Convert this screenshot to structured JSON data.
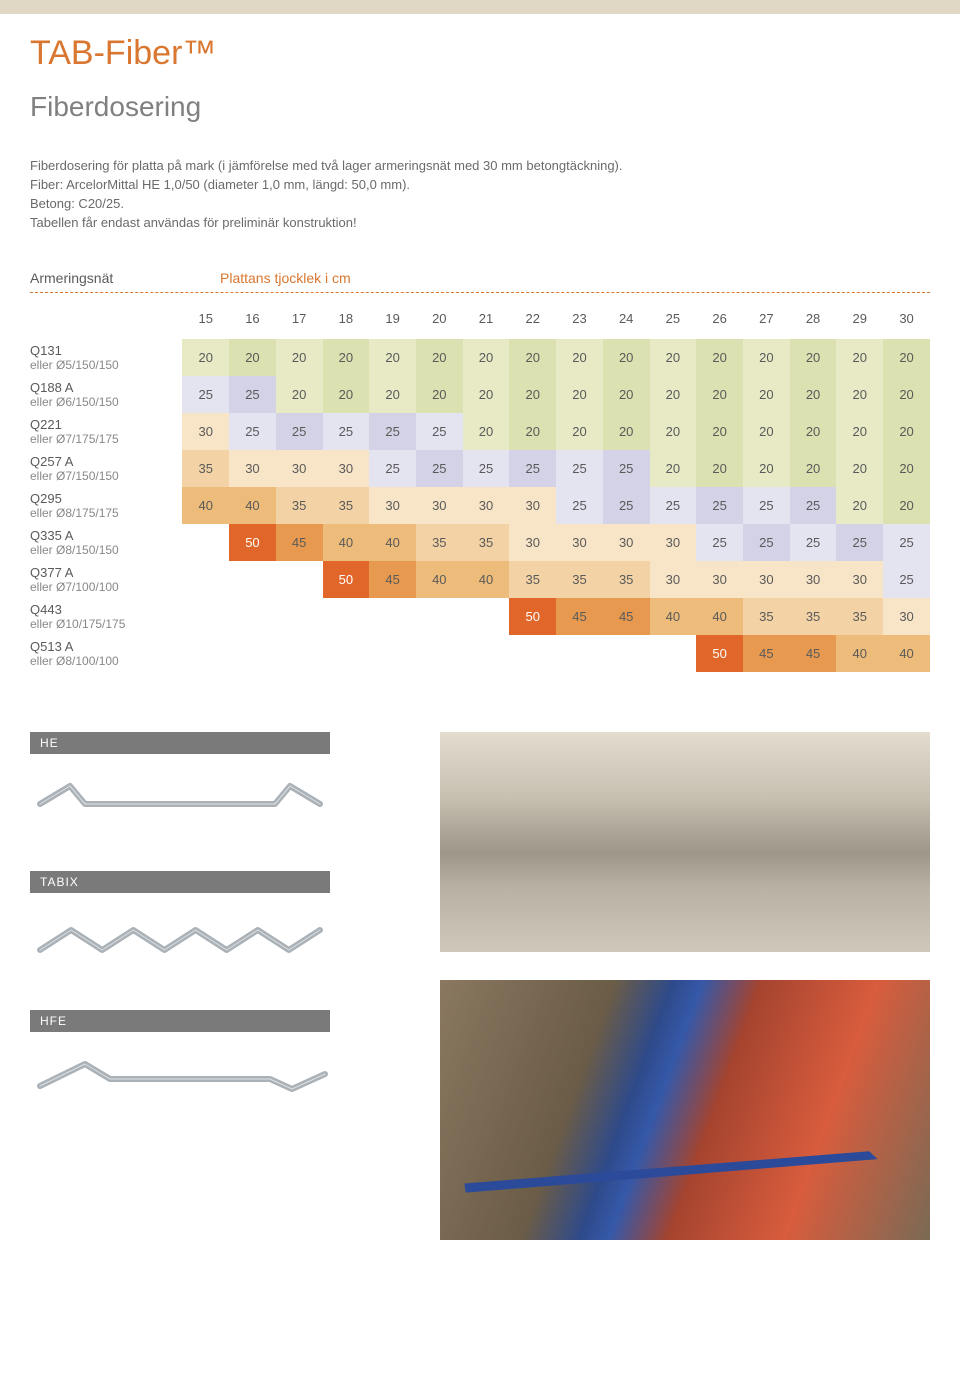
{
  "title": "TAB-Fiber™",
  "section": "Fiberdosering",
  "intro": [
    "Fiberdosering för platta på mark (i jämförelse med två lager armeringsnät med 30 mm betongtäckning).",
    "Fiber: ArcelorMittal HE 1,0/50 (diameter 1,0 mm, längd: 50,0 mm).",
    "Betong: C20/25.",
    "Tabellen får endast användas för preliminär konstruktion!"
  ],
  "table": {
    "row_label_header": "Armeringsnät",
    "col_label_header": "Plattans tjocklek i cm",
    "columns": [
      "15",
      "16",
      "17",
      "18",
      "19",
      "20",
      "21",
      "22",
      "23",
      "24",
      "25",
      "26",
      "27",
      "28",
      "29",
      "30"
    ],
    "col_header_color": "#5a5a5a",
    "cell_text_color": "#5a5a5a",
    "cell_highlight_text_color": "#ffffff",
    "palette": {
      "g1": "#e8eac6",
      "g2": "#dbe1b0",
      "b1": "#e4e3f0",
      "b2": "#d3d2e6",
      "o1": "#f8e4c6",
      "o2": "#f3d3a5",
      "o3": "#eebc7a",
      "o4": "#e79a4f",
      "o5": "#e0662a",
      "blank": ""
    },
    "rows": [
      {
        "main": "Q131",
        "sub": "eller Ø5/150/150",
        "values": [
          "20",
          "20",
          "20",
          "20",
          "20",
          "20",
          "20",
          "20",
          "20",
          "20",
          "20",
          "20",
          "20",
          "20",
          "20",
          "20"
        ],
        "colors": [
          "g1",
          "g2",
          "g1",
          "g2",
          "g1",
          "g2",
          "g1",
          "g2",
          "g1",
          "g2",
          "g1",
          "g2",
          "g1",
          "g2",
          "g1",
          "g2"
        ]
      },
      {
        "main": "Q188 A",
        "sub": "eller Ø6/150/150",
        "values": [
          "25",
          "25",
          "20",
          "20",
          "20",
          "20",
          "20",
          "20",
          "20",
          "20",
          "20",
          "20",
          "20",
          "20",
          "20",
          "20"
        ],
        "colors": [
          "b1",
          "b2",
          "g1",
          "g2",
          "g1",
          "g2",
          "g1",
          "g2",
          "g1",
          "g2",
          "g1",
          "g2",
          "g1",
          "g2",
          "g1",
          "g2"
        ]
      },
      {
        "main": "Q221",
        "sub": "eller Ø7/175/175",
        "values": [
          "30",
          "25",
          "25",
          "25",
          "25",
          "25",
          "20",
          "20",
          "20",
          "20",
          "20",
          "20",
          "20",
          "20",
          "20",
          "20"
        ],
        "colors": [
          "o1",
          "b1",
          "b2",
          "b1",
          "b2",
          "b1",
          "g1",
          "g2",
          "g1",
          "g2",
          "g1",
          "g2",
          "g1",
          "g2",
          "g1",
          "g2"
        ]
      },
      {
        "main": "Q257 A",
        "sub": "eller Ø7/150/150",
        "values": [
          "35",
          "30",
          "30",
          "30",
          "25",
          "25",
          "25",
          "25",
          "25",
          "25",
          "20",
          "20",
          "20",
          "20",
          "20",
          "20"
        ],
        "colors": [
          "o2",
          "o1",
          "o1",
          "o1",
          "b1",
          "b2",
          "b1",
          "b2",
          "b1",
          "b2",
          "g1",
          "g2",
          "g1",
          "g2",
          "g1",
          "g2"
        ]
      },
      {
        "main": "Q295",
        "sub": "eller Ø8/175/175",
        "values": [
          "40",
          "40",
          "35",
          "35",
          "30",
          "30",
          "30",
          "30",
          "25",
          "25",
          "25",
          "25",
          "25",
          "25",
          "20",
          "20"
        ],
        "colors": [
          "o3",
          "o3",
          "o2",
          "o2",
          "o1",
          "o1",
          "o1",
          "o1",
          "b1",
          "b2",
          "b1",
          "b2",
          "b1",
          "b2",
          "g1",
          "g2"
        ]
      },
      {
        "main": "Q335 A",
        "sub": "eller Ø8/150/150",
        "values": [
          "",
          "50",
          "45",
          "40",
          "40",
          "35",
          "35",
          "30",
          "30",
          "30",
          "30",
          "25",
          "25",
          "25",
          "25",
          "25"
        ],
        "colors": [
          "blank",
          "o5",
          "o4",
          "o3",
          "o3",
          "o2",
          "o2",
          "o1",
          "o1",
          "o1",
          "o1",
          "b1",
          "b2",
          "b1",
          "b2",
          "b1"
        ]
      },
      {
        "main": "Q377 A",
        "sub": "eller Ø7/100/100",
        "values": [
          "",
          "",
          "",
          "50",
          "45",
          "40",
          "40",
          "35",
          "35",
          "35",
          "30",
          "30",
          "30",
          "30",
          "30",
          "25"
        ],
        "colors": [
          "blank",
          "blank",
          "blank",
          "o5",
          "o4",
          "o3",
          "o3",
          "o2",
          "o2",
          "o2",
          "o1",
          "o1",
          "o1",
          "o1",
          "o1",
          "b1"
        ]
      },
      {
        "main": "Q443",
        "sub": "eller Ø10/175/175",
        "values": [
          "",
          "",
          "",
          "",
          "",
          "",
          "",
          "50",
          "45",
          "45",
          "40",
          "40",
          "35",
          "35",
          "35",
          "30"
        ],
        "colors": [
          "blank",
          "blank",
          "blank",
          "blank",
          "blank",
          "blank",
          "blank",
          "o5",
          "o4",
          "o4",
          "o3",
          "o3",
          "o2",
          "o2",
          "o2",
          "o1"
        ]
      },
      {
        "main": "Q513 A",
        "sub": "eller Ø8/100/100",
        "values": [
          "",
          "",
          "",
          "",
          "",
          "",
          "",
          "",
          "",
          "",
          "",
          "50",
          "45",
          "45",
          "40",
          "40"
        ],
        "colors": [
          "blank",
          "blank",
          "blank",
          "blank",
          "blank",
          "blank",
          "blank",
          "blank",
          "blank",
          "blank",
          "blank",
          "o5",
          "o4",
          "o4",
          "o3",
          "o3"
        ]
      }
    ]
  },
  "fibers": [
    {
      "key": "he",
      "label": "HE",
      "shape": "he"
    },
    {
      "key": "tabix",
      "label": "TABIX",
      "shape": "tabix"
    },
    {
      "key": "hfe",
      "label": "HFE",
      "shape": "hfe"
    }
  ],
  "fiber_label_bg": "#7a7a7a",
  "fiber_label_fg": "#ffffff",
  "fiber_stroke": "#aab2b8",
  "fiber_stroke_width": 6
}
